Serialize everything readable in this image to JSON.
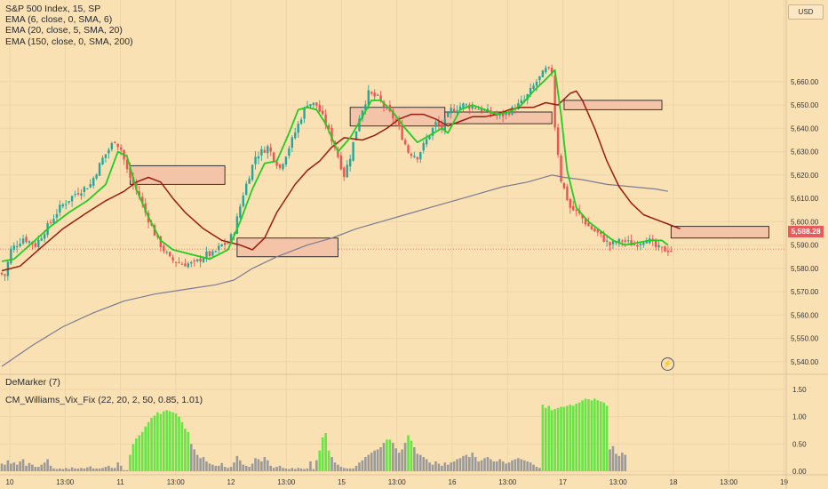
{
  "legend": {
    "symbol": "S&P 500 Index, 15, SP",
    "ema1": "EMA (6, close, 0, SMA, 6)",
    "ema2": "EMA (20, close, 5, SMA, 20)",
    "ema3": "EMA (150, close, 0, SMA, 200)"
  },
  "indicators": {
    "demarker": "DeMarker (7)",
    "vixfix": "CM_Williams_Vix_Fix (22, 20, 2, 50, 0.85, 1.01)"
  },
  "currency": "USD",
  "last_price_label": "5,588.28",
  "colors": {
    "background": "#fae1b4",
    "up_candle": "#26a69a",
    "down_candle": "#ef5350",
    "ema_fast": "#22cc22",
    "ema_mid": "#9b1c0c",
    "ema_slow": "#7b7b96",
    "zone_fill": "#f4c4a8",
    "vix_green": "#66e544",
    "vix_gray": "#9a9a9a",
    "price_tag": "#e85b5b"
  },
  "chart_data": {
    "type": "candlestick",
    "x_tick_labels": [
      "10",
      "13:00",
      "11",
      "13:00",
      "12",
      "13:00",
      "15",
      "13:00",
      "16",
      "13:00",
      "17",
      "13:00",
      "18",
      "13:00",
      "19"
    ],
    "y_range": [
      5535,
      5695
    ],
    "y_ticks": [
      5540,
      5550,
      5560,
      5570,
      5580,
      5590,
      5600,
      5610,
      5620,
      5630,
      5640,
      5650,
      5660
    ],
    "y_tick_labels": [
      "5,540.00",
      "5,550.00",
      "5,560.00",
      "5,570.00",
      "5,580.00",
      "5,590.00",
      "5,600.00",
      "5,610.00",
      "5,620.00",
      "5,630.00",
      "5,640.00",
      "5,650.00",
      "5,660.00"
    ],
    "last_price": 5588.28,
    "close_anchors": [
      [
        0,
        5578
      ],
      [
        2,
        5577
      ],
      [
        4,
        5588
      ],
      [
        8,
        5593
      ],
      [
        12,
        5590
      ],
      [
        16,
        5598
      ],
      [
        20,
        5606
      ],
      [
        25,
        5612
      ],
      [
        30,
        5616
      ],
      [
        34,
        5627
      ],
      [
        38,
        5635
      ],
      [
        40,
        5631
      ],
      [
        42,
        5622
      ],
      [
        44,
        5616
      ],
      [
        46,
        5611
      ],
      [
        48,
        5604
      ],
      [
        50,
        5598
      ],
      [
        52,
        5592
      ],
      [
        56,
        5584
      ],
      [
        60,
        5582
      ],
      [
        64,
        5582
      ],
      [
        68,
        5586
      ],
      [
        70,
        5586
      ],
      [
        73,
        5590
      ],
      [
        75,
        5591
      ],
      [
        77,
        5596
      ],
      [
        80,
        5612
      ],
      [
        84,
        5628
      ],
      [
        88,
        5632
      ],
      [
        92,
        5623
      ],
      [
        96,
        5635
      ],
      [
        99,
        5645
      ],
      [
        101,
        5651
      ],
      [
        104,
        5650
      ],
      [
        107,
        5642
      ],
      [
        110,
        5632
      ],
      [
        113,
        5620
      ],
      [
        115,
        5628
      ],
      [
        118,
        5645
      ],
      [
        121,
        5655
      ],
      [
        124,
        5653
      ],
      [
        127,
        5648
      ],
      [
        130,
        5643
      ],
      [
        134,
        5630
      ],
      [
        137,
        5628
      ],
      [
        140,
        5635
      ],
      [
        143,
        5642
      ],
      [
        145,
        5640
      ],
      [
        148,
        5648
      ],
      [
        152,
        5650
      ],
      [
        156,
        5649
      ],
      [
        160,
        5647
      ],
      [
        164,
        5645
      ],
      [
        168,
        5648
      ],
      [
        172,
        5652
      ],
      [
        176,
        5660
      ],
      [
        179,
        5665
      ],
      [
        181,
        5664
      ],
      [
        182,
        5641
      ],
      [
        184,
        5618
      ],
      [
        187,
        5606
      ],
      [
        190,
        5603
      ],
      [
        193,
        5598
      ],
      [
        196,
        5595
      ],
      [
        200,
        5590
      ],
      [
        204,
        5592
      ],
      [
        208,
        5590
      ],
      [
        212,
        5593
      ],
      [
        215,
        5589
      ],
      [
        217,
        5588
      ]
    ],
    "ema_fast": [
      [
        0,
        5583
      ],
      [
        4,
        5584
      ],
      [
        10,
        5591
      ],
      [
        16,
        5598
      ],
      [
        22,
        5604
      ],
      [
        28,
        5609
      ],
      [
        34,
        5616
      ],
      [
        38,
        5630
      ],
      [
        41,
        5628
      ],
      [
        44,
        5614
      ],
      [
        48,
        5602
      ],
      [
        52,
        5592
      ],
      [
        56,
        5588
      ],
      [
        62,
        5586
      ],
      [
        68,
        5584
      ],
      [
        74,
        5588
      ],
      [
        78,
        5600
      ],
      [
        82,
        5614
      ],
      [
        86,
        5625
      ],
      [
        90,
        5626
      ],
      [
        94,
        5638
      ],
      [
        97,
        5648
      ],
      [
        100,
        5649
      ],
      [
        103,
        5648
      ],
      [
        106,
        5642
      ],
      [
        110,
        5630
      ],
      [
        114,
        5636
      ],
      [
        118,
        5645
      ],
      [
        121,
        5652
      ],
      [
        124,
        5652
      ],
      [
        128,
        5647
      ],
      [
        132,
        5640
      ],
      [
        136,
        5634
      ],
      [
        140,
        5637
      ],
      [
        144,
        5640
      ],
      [
        146,
        5638
      ],
      [
        150,
        5648
      ],
      [
        154,
        5650
      ],
      [
        158,
        5648
      ],
      [
        162,
        5646
      ],
      [
        166,
        5647
      ],
      [
        170,
        5650
      ],
      [
        174,
        5656
      ],
      [
        178,
        5661
      ],
      [
        181,
        5665
      ],
      [
        183,
        5646
      ],
      [
        185,
        5622
      ],
      [
        188,
        5606
      ],
      [
        192,
        5600
      ],
      [
        196,
        5596
      ],
      [
        200,
        5592
      ],
      [
        204,
        5590
      ],
      [
        208,
        5591
      ],
      [
        212,
        5592
      ],
      [
        216,
        5592
      ],
      [
        218,
        5590
      ]
    ],
    "ema_mid": [
      [
        0,
        5579
      ],
      [
        6,
        5581
      ],
      [
        12,
        5588
      ],
      [
        20,
        5597
      ],
      [
        28,
        5604
      ],
      [
        34,
        5609
      ],
      [
        40,
        5613
      ],
      [
        44,
        5617
      ],
      [
        48,
        5619
      ],
      [
        52,
        5617
      ],
      [
        56,
        5610
      ],
      [
        60,
        5604
      ],
      [
        66,
        5597
      ],
      [
        72,
        5592
      ],
      [
        78,
        5590
      ],
      [
        82,
        5588
      ],
      [
        86,
        5593
      ],
      [
        90,
        5604
      ],
      [
        96,
        5616
      ],
      [
        100,
        5622
      ],
      [
        104,
        5626
      ],
      [
        108,
        5632
      ],
      [
        112,
        5636
      ],
      [
        118,
        5635
      ],
      [
        122,
        5637
      ],
      [
        126,
        5640
      ],
      [
        130,
        5644
      ],
      [
        134,
        5646
      ],
      [
        138,
        5646
      ],
      [
        142,
        5644
      ],
      [
        146,
        5641
      ],
      [
        150,
        5643
      ],
      [
        154,
        5645
      ],
      [
        158,
        5645
      ],
      [
        162,
        5646
      ],
      [
        166,
        5648
      ],
      [
        170,
        5649
      ],
      [
        174,
        5649
      ],
      [
        178,
        5651
      ],
      [
        182,
        5650
      ],
      [
        186,
        5655
      ],
      [
        188,
        5656
      ],
      [
        190,
        5652
      ],
      [
        194,
        5640
      ],
      [
        198,
        5626
      ],
      [
        202,
        5615
      ],
      [
        206,
        5608
      ],
      [
        210,
        5603
      ],
      [
        214,
        5601
      ],
      [
        218,
        5599
      ],
      [
        222,
        5597
      ]
    ],
    "ema_slow": [
      [
        0,
        5538
      ],
      [
        10,
        5547
      ],
      [
        20,
        5555
      ],
      [
        30,
        5561
      ],
      [
        40,
        5566
      ],
      [
        50,
        5569
      ],
      [
        60,
        5571
      ],
      [
        70,
        5573
      ],
      [
        76,
        5575
      ],
      [
        82,
        5580
      ],
      [
        90,
        5585
      ],
      [
        100,
        5590
      ],
      [
        108,
        5593
      ],
      [
        116,
        5597
      ],
      [
        124,
        5600
      ],
      [
        132,
        5603
      ],
      [
        140,
        5606
      ],
      [
        148,
        5609
      ],
      [
        156,
        5612
      ],
      [
        164,
        5615
      ],
      [
        172,
        5617
      ],
      [
        180,
        5620
      ],
      [
        184,
        5619
      ],
      [
        190,
        5618
      ],
      [
        198,
        5616
      ],
      [
        206,
        5615
      ],
      [
        214,
        5614
      ],
      [
        218,
        5613
      ]
    ],
    "zones": [
      {
        "from": 42,
        "to": 73,
        "low": 5616,
        "high": 5624
      },
      {
        "from": 77,
        "to": 110,
        "low": 5585,
        "high": 5593
      },
      {
        "from": 114,
        "to": 145,
        "low": 5641,
        "high": 5649
      },
      {
        "from": 145,
        "to": 180,
        "low": 5642,
        "high": 5647
      },
      {
        "from": 184,
        "to": 216,
        "low": 5648,
        "high": 5652
      },
      {
        "from": 219,
        "to": 251,
        "low": 5593,
        "high": 5598
      }
    ],
    "vix_range": [
      0,
      1.5
    ],
    "vix_ticks": [
      0.0,
      0.5,
      1.0,
      1.5
    ],
    "vix_tick_labels": [
      "0.00",
      "0.50",
      "1.00",
      "1.50"
    ],
    "vix_bars": [
      0.14,
      0.12,
      0.2,
      0.14,
      0.16,
      0.12,
      0.18,
      0.22,
      0.1,
      0.15,
      0.12,
      0.08,
      0.08,
      0.12,
      0.16,
      0.22,
      0.1,
      0.05,
      0.04,
      0.05,
      0.04,
      0.06,
      0.04,
      0.07,
      0.05,
      0.05,
      0.06,
      0.05,
      0.07,
      0.09,
      0.05,
      0.05,
      0.05,
      0.06,
      0.08,
      0.1,
      0.06,
      0.06,
      0.16,
      0.1,
      0.02,
      0.02,
      0.3,
      0.5,
      0.6,
      0.66,
      0.72,
      0.82,
      0.9,
      0.98,
      1.02,
      1.08,
      1.05,
      1.1,
      1.12,
      1.1,
      1.08,
      1.06,
      1.0,
      0.9,
      0.78,
      0.72,
      0.5,
      0.4,
      0.3,
      0.24,
      0.26,
      0.18,
      0.14,
      0.12,
      0.1,
      0.1,
      0.15,
      0.08,
      0.06,
      0.08,
      0.16,
      0.28,
      0.2,
      0.12,
      0.1,
      0.08,
      0.14,
      0.24,
      0.22,
      0.18,
      0.26,
      0.2,
      0.1,
      0.06,
      0.08,
      0.1,
      0.06,
      0.05,
      0.04,
      0.06,
      0.04,
      0.06,
      0.05,
      0.04,
      0.05,
      0.18,
      0.04,
      0.2,
      0.38,
      0.62,
      0.7,
      0.38,
      0.26,
      0.16,
      0.12,
      0.08,
      0.06,
      0.05,
      0.05,
      0.05,
      0.1,
      0.16,
      0.2,
      0.26,
      0.3,
      0.34,
      0.38,
      0.4,
      0.44,
      0.52,
      0.58,
      0.58,
      0.52,
      0.42,
      0.34,
      0.4,
      0.52,
      0.66,
      0.56,
      0.44,
      0.32,
      0.3,
      0.26,
      0.22,
      0.16,
      0.12,
      0.18,
      0.14,
      0.1,
      0.16,
      0.12,
      0.16,
      0.18,
      0.22,
      0.24,
      0.28,
      0.3,
      0.26,
      0.34,
      0.26,
      0.18,
      0.2,
      0.24,
      0.26,
      0.22,
      0.18,
      0.18,
      0.22,
      0.18,
      0.14,
      0.16,
      0.2,
      0.22,
      0.24,
      0.22,
      0.2,
      0.18,
      0.16,
      0.12,
      0.08,
      0.06,
      1.22,
      1.16,
      1.2,
      1.12,
      1.14,
      1.16,
      1.18,
      1.18,
      1.2,
      1.22,
      1.2,
      1.24,
      1.26,
      1.3,
      1.33,
      1.32,
      1.3,
      1.33,
      1.3,
      1.28,
      1.26,
      1.2,
      0.4,
      0.46,
      0.32,
      0.28,
      0.34,
      0.3
    ],
    "vix_green_threshold": 0.55
  }
}
